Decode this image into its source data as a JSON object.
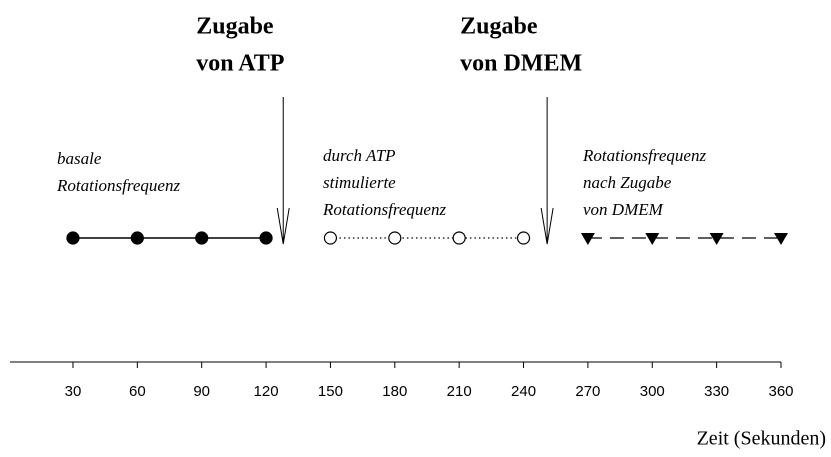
{
  "chart_data": {
    "type": "timeline",
    "xlabel": "Zeit (Sekunden)",
    "xlim": [
      0,
      360
    ],
    "xticks": [
      30,
      60,
      90,
      120,
      150,
      180,
      210,
      240,
      270,
      300,
      330,
      360
    ],
    "color": "#000000",
    "series": [
      {
        "name": [
          "basale",
          "Rotationsfrequenz"
        ],
        "line": "solid",
        "marker": "filled-circle",
        "x": [
          30,
          60,
          90,
          120
        ]
      },
      {
        "name": [
          "durch ATP",
          "stimulierte",
          "Rotationsfrequenz"
        ],
        "line": "dotted",
        "marker": "open-circle",
        "x": [
          150,
          180,
          210,
          240
        ]
      },
      {
        "name": [
          "Rotationsfrequenz",
          "nach Zugabe",
          "von DMEM"
        ],
        "line": "dashed",
        "marker": "filled-triangle-down",
        "x": [
          270,
          300,
          330,
          360
        ]
      }
    ],
    "annotations": [
      {
        "text": [
          "Zugabe",
          "von ATP"
        ],
        "x": 128
      },
      {
        "text": [
          "Zugabe",
          "von DMEM"
        ],
        "x": 251
      }
    ]
  }
}
